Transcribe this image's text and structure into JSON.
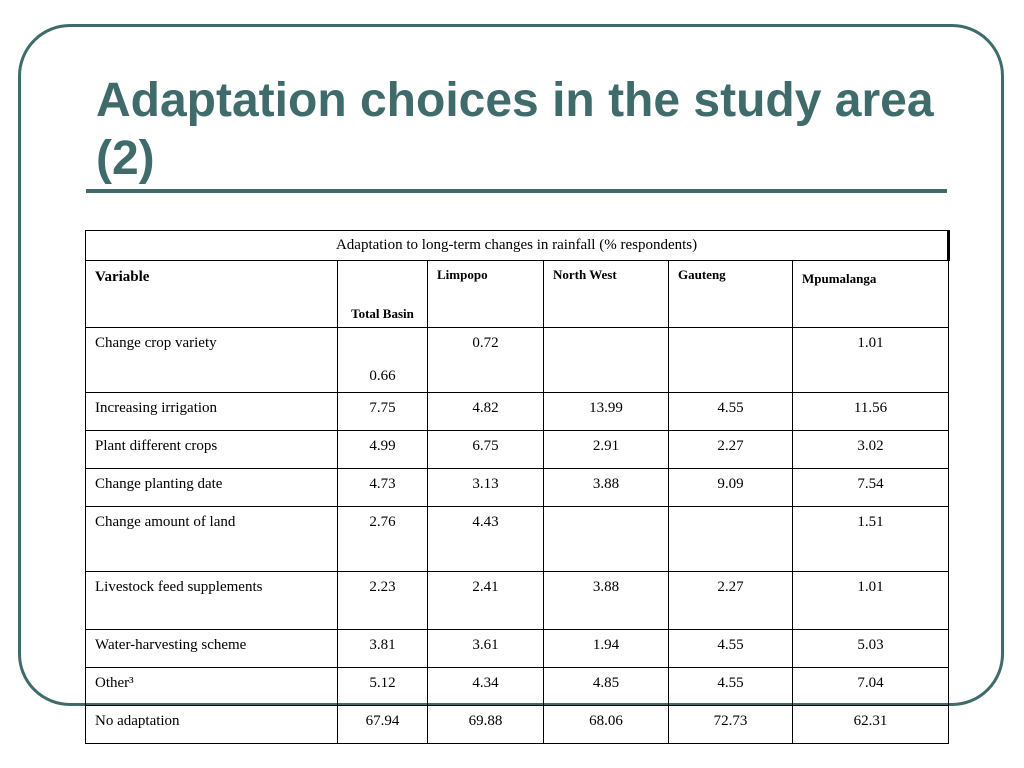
{
  "slide": {
    "title": "Adaptation choices in the study area (2)"
  },
  "table": {
    "caption": "Adaptation to long-term changes in rainfall (% respondents)",
    "columns": {
      "variable": "Variable",
      "total_basin": "Total Basin",
      "limpopo": "Limpopo",
      "north_west": "North West",
      "gauteng": "Gauteng",
      "mpumalanga": "Mpumalanga"
    },
    "rows": [
      {
        "label": "Change crop variety",
        "total": "0.66",
        "limpopo": "0.72",
        "north_west": "",
        "gauteng": "",
        "mpumalanga": "1.01"
      },
      {
        "label": "Increasing irrigation",
        "total": "7.75",
        "limpopo": "4.82",
        "north_west": "13.99",
        "gauteng": "4.55",
        "mpumalanga": "11.56"
      },
      {
        "label": "Plant different crops",
        "total": "4.99",
        "limpopo": "6.75",
        "north_west": "2.91",
        "gauteng": "2.27",
        "mpumalanga": "3.02"
      },
      {
        "label": "Change planting date",
        "total": "4.73",
        "limpopo": "3.13",
        "north_west": "3.88",
        "gauteng": "9.09",
        "mpumalanga": "7.54"
      },
      {
        "label": "Change amount of land",
        "total": "2.76",
        "limpopo": "4.43",
        "north_west": "",
        "gauteng": "",
        "mpumalanga": "1.51"
      },
      {
        "label": "Livestock feed supplements",
        "total": "2.23",
        "limpopo": "2.41",
        "north_west": "3.88",
        "gauteng": "2.27",
        "mpumalanga": "1.01"
      },
      {
        "label": "Water-harvesting scheme",
        "total": "3.81",
        "limpopo": "3.61",
        "north_west": "1.94",
        "gauteng": "4.55",
        "mpumalanga": "5.03"
      },
      {
        "label": "Other³",
        "total": "5.12",
        "limpopo": "4.34",
        "north_west": "4.85",
        "gauteng": "4.55",
        "mpumalanga": "7.04"
      },
      {
        "label": "No adaptation",
        "total": "67.94",
        "limpopo": "69.88",
        "north_west": "68.06",
        "gauteng": "72.73",
        "mpumalanga": "62.31"
      }
    ]
  },
  "colors": {
    "accent": "#3f6b6b",
    "text": "#000000",
    "background": "#ffffff"
  }
}
